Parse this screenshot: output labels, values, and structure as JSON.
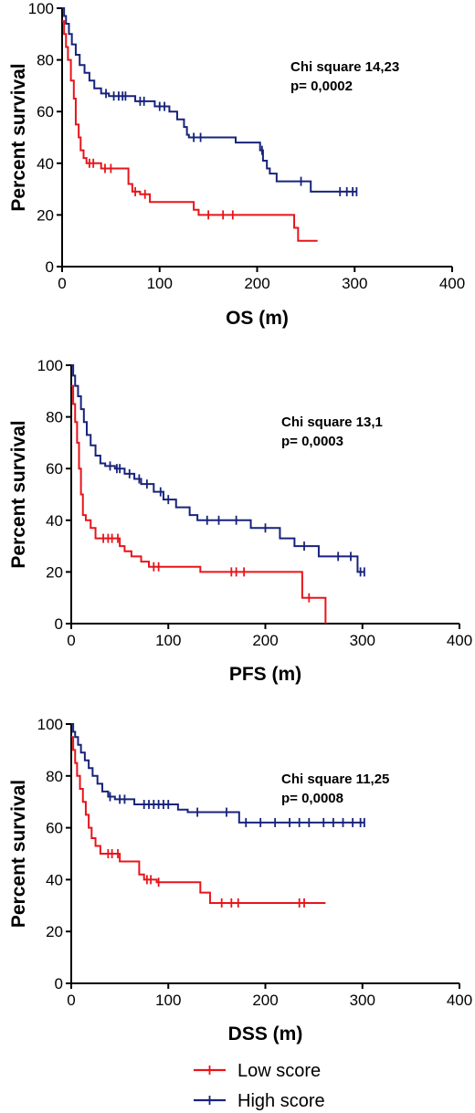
{
  "chart_data": [
    {
      "type": "line",
      "step": true,
      "xlabel": "OS (m)",
      "ylabel": "Percent survival",
      "xlim": [
        0,
        400
      ],
      "ylim": [
        0,
        100
      ],
      "xticks": [
        0,
        100,
        200,
        300,
        400
      ],
      "yticks": [
        0,
        20,
        40,
        60,
        80,
        100
      ],
      "annotation": [
        "Chi square 14,23",
        "p= 0,0002"
      ],
      "series": [
        {
          "name": "Low score",
          "color": "#e8141b",
          "points": [
            [
              0,
              95
            ],
            [
              2,
              90
            ],
            [
              4,
              85
            ],
            [
              6,
              80
            ],
            [
              9,
              72
            ],
            [
              12,
              65
            ],
            [
              14,
              55
            ],
            [
              17,
              50
            ],
            [
              19,
              45
            ],
            [
              22,
              42
            ],
            [
              25,
              40
            ],
            [
              35,
              40
            ],
            [
              40,
              38
            ],
            [
              65,
              38
            ],
            [
              68,
              32
            ],
            [
              72,
              29
            ],
            [
              80,
              28
            ],
            [
              90,
              25
            ],
            [
              130,
              25
            ],
            [
              135,
              22
            ],
            [
              140,
              20
            ],
            [
              235,
              20
            ],
            [
              238,
              15
            ],
            [
              242,
              10
            ],
            [
              262,
              10
            ]
          ],
          "censors": [
            28,
            32,
            44,
            50,
            75,
            85,
            150,
            165,
            175
          ]
        },
        {
          "name": "High score",
          "color": "#17237c",
          "points": [
            [
              0,
              100
            ],
            [
              2,
              97
            ],
            [
              4,
              94
            ],
            [
              7,
              90
            ],
            [
              10,
              86
            ],
            [
              14,
              82
            ],
            [
              18,
              78
            ],
            [
              23,
              75
            ],
            [
              28,
              72
            ],
            [
              33,
              69
            ],
            [
              40,
              67
            ],
            [
              48,
              66
            ],
            [
              70,
              66
            ],
            [
              75,
              64
            ],
            [
              90,
              64
            ],
            [
              95,
              62
            ],
            [
              110,
              60
            ],
            [
              118,
              57
            ],
            [
              125,
              54
            ],
            [
              128,
              51
            ],
            [
              130,
              50
            ],
            [
              175,
              50
            ],
            [
              178,
              48
            ],
            [
              200,
              48
            ],
            [
              203,
              45
            ],
            [
              206,
              41
            ],
            [
              210,
              38
            ],
            [
              213,
              36
            ],
            [
              220,
              33
            ],
            [
              250,
              33
            ],
            [
              255,
              29
            ],
            [
              302,
              29
            ]
          ],
          "censors": [
            45,
            53,
            58,
            62,
            65,
            80,
            84,
            100,
            105,
            135,
            142,
            205,
            245,
            285,
            292,
            298,
            302
          ]
        }
      ]
    },
    {
      "type": "line",
      "step": true,
      "xlabel": "PFS (m)",
      "ylabel": "Percent survival",
      "xlim": [
        0,
        400
      ],
      "ylim": [
        0,
        100
      ],
      "xticks": [
        0,
        100,
        200,
        300,
        400
      ],
      "yticks": [
        0,
        20,
        40,
        60,
        80,
        100
      ],
      "annotation": [
        "Chi square 13,1",
        "p= 0,0003"
      ],
      "series": [
        {
          "name": "Low score",
          "color": "#e8141b",
          "points": [
            [
              0,
              92
            ],
            [
              2,
              85
            ],
            [
              4,
              78
            ],
            [
              6,
              70
            ],
            [
              8,
              60
            ],
            [
              10,
              50
            ],
            [
              12,
              42
            ],
            [
              15,
              40
            ],
            [
              20,
              37
            ],
            [
              25,
              33
            ],
            [
              45,
              33
            ],
            [
              50,
              30
            ],
            [
              55,
              28
            ],
            [
              62,
              26
            ],
            [
              72,
              24
            ],
            [
              80,
              22
            ],
            [
              130,
              22
            ],
            [
              133,
              20
            ],
            [
              235,
              20
            ],
            [
              238,
              10
            ],
            [
              255,
              10
            ],
            [
              262,
              0
            ]
          ],
          "censors": [
            33,
            38,
            42,
            48,
            85,
            90,
            165,
            170,
            178,
            245
          ]
        },
        {
          "name": "High score",
          "color": "#17237c",
          "points": [
            [
              0,
              100
            ],
            [
              2,
              96
            ],
            [
              4,
              92
            ],
            [
              7,
              88
            ],
            [
              10,
              83
            ],
            [
              13,
              78
            ],
            [
              16,
              73
            ],
            [
              20,
              69
            ],
            [
              25,
              65
            ],
            [
              30,
              62
            ],
            [
              35,
              61
            ],
            [
              45,
              60
            ],
            [
              55,
              58
            ],
            [
              65,
              56
            ],
            [
              72,
              54
            ],
            [
              85,
              51
            ],
            [
              95,
              48
            ],
            [
              108,
              45
            ],
            [
              122,
              42
            ],
            [
              130,
              40
            ],
            [
              180,
              40
            ],
            [
              185,
              37
            ],
            [
              210,
              37
            ],
            [
              215,
              33
            ],
            [
              230,
              30
            ],
            [
              250,
              30
            ],
            [
              255,
              26
            ],
            [
              290,
              26
            ],
            [
              295,
              20
            ],
            [
              302,
              20
            ]
          ],
          "censors": [
            40,
            47,
            50,
            60,
            70,
            78,
            92,
            100,
            140,
            152,
            170,
            200,
            240,
            275,
            288,
            298,
            302
          ]
        }
      ]
    },
    {
      "type": "line",
      "step": true,
      "xlabel": "DSS (m)",
      "ylabel": "Percent survival",
      "xlim": [
        0,
        400
      ],
      "ylim": [
        0,
        100
      ],
      "xticks": [
        0,
        100,
        200,
        300,
        400
      ],
      "yticks": [
        0,
        20,
        40,
        60,
        80,
        100
      ],
      "annotation": [
        "Chi square 11,25",
        "p= 0,0008"
      ],
      "series": [
        {
          "name": "Low score",
          "color": "#e8141b",
          "points": [
            [
              0,
              95
            ],
            [
              2,
              90
            ],
            [
              4,
              85
            ],
            [
              6,
              80
            ],
            [
              9,
              75
            ],
            [
              12,
              70
            ],
            [
              15,
              65
            ],
            [
              18,
              60
            ],
            [
              21,
              56
            ],
            [
              25,
              53
            ],
            [
              30,
              50
            ],
            [
              45,
              50
            ],
            [
              50,
              47
            ],
            [
              65,
              47
            ],
            [
              70,
              42
            ],
            [
              75,
              40
            ],
            [
              85,
              40
            ],
            [
              88,
              39
            ],
            [
              130,
              39
            ],
            [
              133,
              35
            ],
            [
              140,
              35
            ],
            [
              143,
              31
            ],
            [
              262,
              31
            ]
          ],
          "censors": [
            38,
            42,
            48,
            78,
            82,
            90,
            155,
            165,
            172,
            235,
            240
          ]
        },
        {
          "name": "High score",
          "color": "#17237c",
          "points": [
            [
              0,
              100
            ],
            [
              2,
              97
            ],
            [
              4,
              95
            ],
            [
              7,
              92
            ],
            [
              10,
              89
            ],
            [
              14,
              86
            ],
            [
              18,
              83
            ],
            [
              22,
              80
            ],
            [
              27,
              77
            ],
            [
              32,
              74
            ],
            [
              38,
              72
            ],
            [
              45,
              71
            ],
            [
              60,
              71
            ],
            [
              65,
              69
            ],
            [
              105,
              69
            ],
            [
              110,
              67
            ],
            [
              120,
              66
            ],
            [
              170,
              66
            ],
            [
              173,
              62
            ],
            [
              302,
              62
            ]
          ],
          "censors": [
            40,
            50,
            55,
            75,
            80,
            85,
            90,
            95,
            100,
            130,
            160,
            180,
            195,
            210,
            225,
            235,
            245,
            260,
            270,
            280,
            290,
            298,
            302
          ]
        }
      ]
    }
  ],
  "legend": [
    {
      "label": "Low score",
      "color": "#e8141b"
    },
    {
      "label": "High score",
      "color": "#17237c"
    }
  ]
}
